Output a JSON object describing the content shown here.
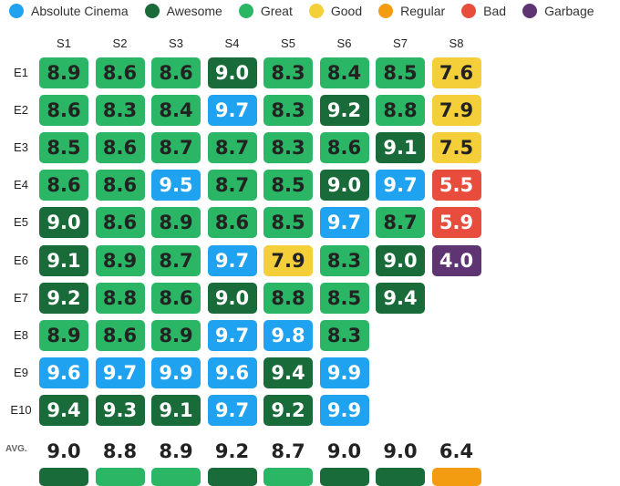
{
  "chart_data": {
    "type": "heatmap",
    "columns": [
      "S1",
      "S2",
      "S3",
      "S4",
      "S5",
      "S6",
      "S7",
      "S8"
    ],
    "rows": [
      "E1",
      "E2",
      "E3",
      "E4",
      "E5",
      "E6",
      "E7",
      "E8",
      "E9",
      "E10"
    ],
    "values": [
      [
        8.9,
        8.6,
        8.6,
        9.0,
        8.3,
        8.4,
        8.5,
        7.6
      ],
      [
        8.6,
        8.3,
        8.4,
        9.7,
        8.3,
        9.2,
        8.8,
        7.9
      ],
      [
        8.5,
        8.6,
        8.7,
        8.7,
        8.3,
        8.6,
        9.1,
        7.5
      ],
      [
        8.6,
        8.6,
        9.5,
        8.7,
        8.5,
        9.0,
        9.7,
        5.5
      ],
      [
        9.0,
        8.6,
        8.9,
        8.6,
        8.5,
        9.7,
        8.7,
        5.9
      ],
      [
        9.1,
        8.9,
        8.7,
        9.7,
        7.9,
        8.3,
        9.0,
        4.0
      ],
      [
        9.2,
        8.8,
        8.6,
        9.0,
        8.8,
        8.5,
        9.4,
        null
      ],
      [
        8.9,
        8.6,
        8.9,
        9.7,
        9.8,
        8.3,
        null,
        null
      ],
      [
        9.6,
        9.7,
        9.9,
        9.6,
        9.4,
        9.9,
        null,
        null
      ],
      [
        9.4,
        9.3,
        9.1,
        9.7,
        9.2,
        9.9,
        null,
        null
      ]
    ],
    "average_label": "AVG.",
    "averages": [
      "9.0",
      "8.8",
      "8.9",
      "9.2",
      "8.7",
      "9.0",
      "9.0",
      "6.4"
    ],
    "legend_placement": "top-left",
    "legend": [
      {
        "name": "Absolute Cinema",
        "color": "#1fa2f0",
        "min": 9.5
      },
      {
        "name": "Awesome",
        "color": "#1a6b3a",
        "min": 9.0
      },
      {
        "name": "Great",
        "color": "#2ab665",
        "min": 8.0
      },
      {
        "name": "Good",
        "color": "#f4cf3a",
        "min": 7.0
      },
      {
        "name": "Regular",
        "color": "#f39c12",
        "min": 6.0
      },
      {
        "name": "Bad",
        "color": "#e74c3c",
        "min": 5.0
      },
      {
        "name": "Garbage",
        "color": "#5e3473",
        "min": 0
      }
    ]
  }
}
